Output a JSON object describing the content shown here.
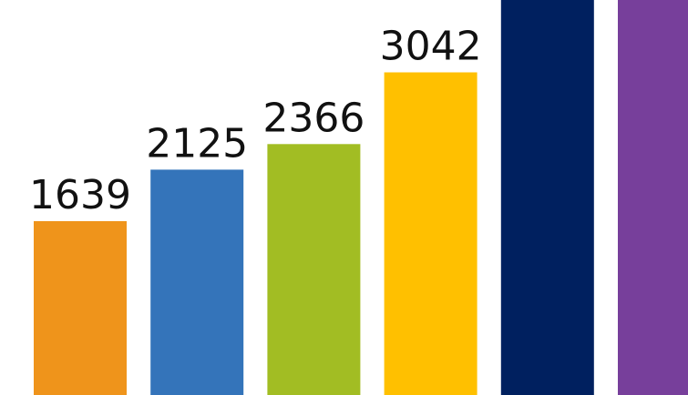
{
  "chart_data": {
    "type": "bar",
    "values": [
      1639,
      2125,
      2366,
      3042,
      null,
      null
    ],
    "labels": [
      "1639",
      "2125",
      "2366",
      "3042",
      "",
      ""
    ],
    "colors": [
      "#ef941b",
      "#3474ba",
      "#a2bd23",
      "#ffc000",
      "#00205f",
      "#773f9b"
    ],
    "ylim": [
      0,
      4200
    ],
    "grid": false,
    "legend": false
  }
}
